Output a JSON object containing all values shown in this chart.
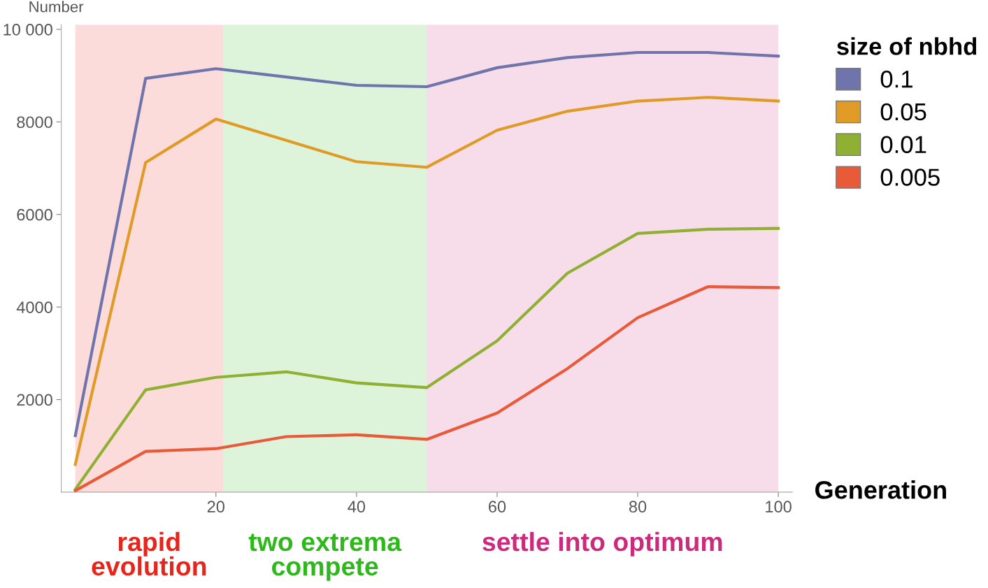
{
  "chart_data": {
    "type": "line",
    "x": [
      0,
      10,
      20,
      30,
      40,
      50,
      60,
      70,
      80,
      90,
      100
    ],
    "xlabel": "Generation",
    "ylabel": "Number",
    "legend_title": "size of nbhd",
    "xlim": [
      -2,
      102
    ],
    "ylim": [
      0,
      10100
    ],
    "xticks": [
      20,
      40,
      60,
      80,
      100
    ],
    "yticks": [
      2000,
      4000,
      6000,
      8000,
      {
        "value": 10000,
        "label": "10 000"
      }
    ],
    "grid": false,
    "legend": "right",
    "marker": "none",
    "line_style": "solid",
    "series": [
      {
        "name": "0.1",
        "color": "#6f74ad",
        "values": [
          1220,
          8940,
          9150,
          8970,
          8790,
          8760,
          9170,
          9390,
          9500,
          9500,
          9420
        ]
      },
      {
        "name": "0.05",
        "color": "#e09b27",
        "values": [
          600,
          7120,
          8060,
          7600,
          7140,
          7020,
          7820,
          8230,
          8450,
          8530,
          8450
        ]
      },
      {
        "name": "0.01",
        "color": "#8fb032",
        "values": [
          60,
          2210,
          2480,
          2600,
          2360,
          2260,
          3270,
          4730,
          5590,
          5680,
          5700
        ]
      },
      {
        "name": "0.005",
        "color": "#e85a38",
        "values": [
          30,
          880,
          940,
          1200,
          1240,
          1140,
          1710,
          2670,
          3770,
          4440,
          4420
        ]
      }
    ],
    "bands": [
      {
        "axis": "x",
        "from": 0,
        "to": 21,
        "label": "rapid\nevolution",
        "color": "#e8251b"
      },
      {
        "axis": "x",
        "from": 21,
        "to": 50,
        "label": "two extrema\ncompete",
        "color": "#2eb81c"
      },
      {
        "axis": "x",
        "from": 50,
        "to": 100,
        "label": "settle into optimum",
        "color": "#cc2a7c"
      }
    ]
  }
}
